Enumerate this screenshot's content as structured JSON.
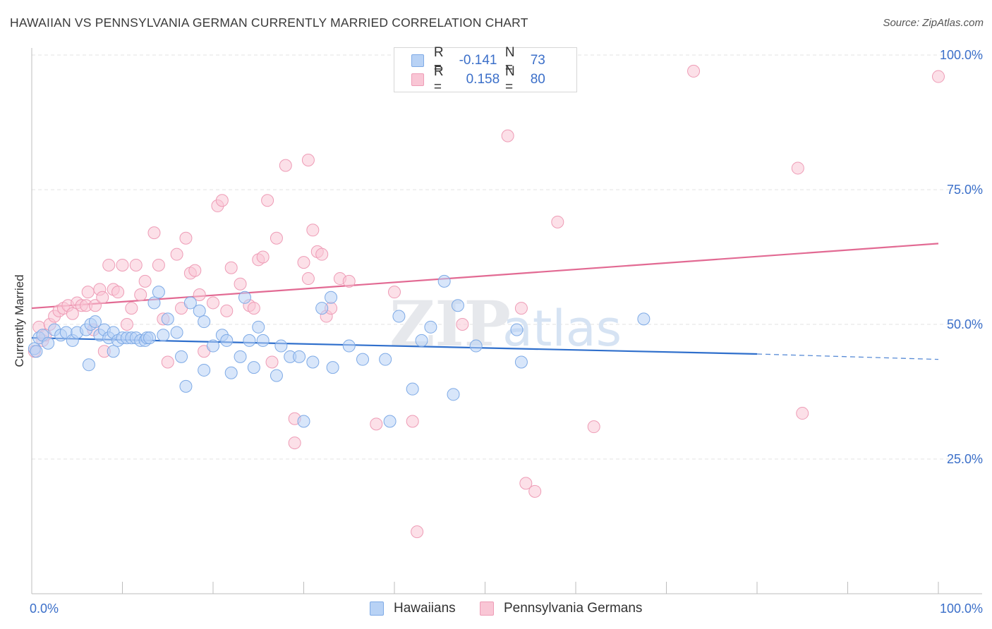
{
  "title": "HAWAIIAN VS PENNSYLVANIA GERMAN CURRENTLY MARRIED CORRELATION CHART",
  "source": "Source: ZipAtlas.com",
  "watermark": {
    "zip": "ZIP",
    "atlas": "atlas"
  },
  "colors": {
    "blue_fill": "#b8d2f5",
    "blue_stroke": "#7eaae6",
    "blue_line": "#2f6fcc",
    "pink_fill": "#f9c6d5",
    "pink_stroke": "#ee9cb6",
    "pink_line": "#e26a93",
    "tick_text": "#3b6fc9",
    "grid": "#e3e3e3"
  },
  "legend": {
    "rows": [
      {
        "r_label": "R =",
        "r_value": "-0.141",
        "n_label": "N =",
        "n_value": "73"
      },
      {
        "r_label": "R =",
        "r_value": "0.158",
        "n_label": "N =",
        "n_value": "80"
      }
    ]
  },
  "chart_data": {
    "type": "scatter",
    "title": "HAWAIIAN VS PENNSYLVANIA GERMAN CURRENTLY MARRIED CORRELATION CHART",
    "xlabel": "",
    "ylabel": "Currently Married",
    "xlim": [
      0,
      100
    ],
    "ylim": [
      0,
      100
    ],
    "x_tick_labels": [
      "0.0%",
      "100.0%"
    ],
    "y_tick_labels": [
      "25.0%",
      "50.0%",
      "75.0%",
      "100.0%"
    ],
    "y_ticks": [
      25,
      50,
      75,
      100
    ],
    "legend_position": "top-center",
    "series": [
      {
        "name": "Hawaiians",
        "r": -0.141,
        "n": 73,
        "trend": {
          "x0": 0,
          "y0": 47.5,
          "x1": 80,
          "y1": 44.5,
          "dash_to": 100,
          "dash_y": 43.5
        },
        "points": [
          [
            0.3,
            45.5
          ],
          [
            0.8,
            47.5
          ],
          [
            1.2,
            48
          ],
          [
            1.8,
            46.5
          ],
          [
            2.5,
            49
          ],
          [
            3.2,
            48
          ],
          [
            3.8,
            48.5
          ],
          [
            4.5,
            47
          ],
          [
            5,
            48.5
          ],
          [
            6,
            49
          ],
          [
            6.3,
            42.5
          ],
          [
            6.5,
            50
          ],
          [
            7,
            50.5
          ],
          [
            7.5,
            48
          ],
          [
            8,
            49
          ],
          [
            8.5,
            47.5
          ],
          [
            9,
            48.5
          ],
          [
            9,
            45
          ],
          [
            9.5,
            47
          ],
          [
            10,
            47.5
          ],
          [
            10.5,
            47.5
          ],
          [
            11,
            47.5
          ],
          [
            11.5,
            47.5
          ],
          [
            12,
            47
          ],
          [
            12.5,
            47
          ],
          [
            12.7,
            47.5
          ],
          [
            13,
            47.5
          ],
          [
            13.5,
            54
          ],
          [
            14,
            56
          ],
          [
            14.5,
            48
          ],
          [
            15,
            51
          ],
          [
            16,
            48.5
          ],
          [
            16.5,
            44
          ],
          [
            17,
            38.5
          ],
          [
            17.5,
            54
          ],
          [
            18.5,
            52.5
          ],
          [
            19,
            41.5
          ],
          [
            19,
            50.5
          ],
          [
            20,
            46
          ],
          [
            21,
            48
          ],
          [
            21.5,
            47
          ],
          [
            22,
            41
          ],
          [
            23,
            44
          ],
          [
            23.5,
            55
          ],
          [
            24,
            47
          ],
          [
            24.5,
            42
          ],
          [
            25,
            49.5
          ],
          [
            25.5,
            47
          ],
          [
            27,
            40.5
          ],
          [
            27.5,
            46
          ],
          [
            28.5,
            44
          ],
          [
            29.5,
            44
          ],
          [
            30,
            32
          ],
          [
            31,
            43
          ],
          [
            32,
            53
          ],
          [
            33,
            55
          ],
          [
            33.2,
            42
          ],
          [
            35,
            46
          ],
          [
            36.5,
            43.5
          ],
          [
            39,
            43.5
          ],
          [
            39.5,
            32
          ],
          [
            40.5,
            51.5
          ],
          [
            42,
            38
          ],
          [
            43,
            47
          ],
          [
            44,
            49.5
          ],
          [
            45.5,
            58
          ],
          [
            46.5,
            37
          ],
          [
            47,
            53.5
          ],
          [
            49,
            46
          ],
          [
            53.5,
            49
          ],
          [
            54,
            43
          ],
          [
            67.5,
            51
          ],
          [
            0.5,
            45
          ]
        ]
      },
      {
        "name": "Pennsylvania Germans",
        "r": 0.158,
        "n": 80,
        "trend": {
          "x0": 0,
          "y0": 53,
          "x1": 100,
          "y1": 65
        },
        "points": [
          [
            0.3,
            45
          ],
          [
            0.8,
            49.5
          ],
          [
            1.2,
            47
          ],
          [
            1.5,
            48
          ],
          [
            2,
            50
          ],
          [
            2.5,
            51.5
          ],
          [
            3,
            52.5
          ],
          [
            3.5,
            53
          ],
          [
            4,
            53.5
          ],
          [
            4.5,
            52
          ],
          [
            5,
            54
          ],
          [
            5.5,
            53.5
          ],
          [
            6,
            53.5
          ],
          [
            6.2,
            56
          ],
          [
            6.8,
            49
          ],
          [
            7,
            53.5
          ],
          [
            7.5,
            56.5
          ],
          [
            7.8,
            55
          ],
          [
            8,
            45
          ],
          [
            8.5,
            61
          ],
          [
            9,
            56.5
          ],
          [
            9.5,
            56
          ],
          [
            10,
            61
          ],
          [
            10.5,
            50
          ],
          [
            11,
            53
          ],
          [
            11.5,
            61
          ],
          [
            12,
            55.5
          ],
          [
            12.5,
            58
          ],
          [
            13.5,
            67
          ],
          [
            14,
            61
          ],
          [
            14.5,
            51
          ],
          [
            15,
            43
          ],
          [
            16,
            63
          ],
          [
            16.5,
            53
          ],
          [
            17,
            66
          ],
          [
            17.5,
            59.5
          ],
          [
            18,
            60
          ],
          [
            18.5,
            55.5
          ],
          [
            19,
            45
          ],
          [
            20,
            54
          ],
          [
            20.5,
            72
          ],
          [
            21,
            73
          ],
          [
            21.5,
            52.5
          ],
          [
            22,
            60.5
          ],
          [
            23,
            57.5
          ],
          [
            24,
            53.5
          ],
          [
            24.5,
            53
          ],
          [
            25,
            62
          ],
          [
            25.5,
            62.5
          ],
          [
            26,
            73
          ],
          [
            26.5,
            43
          ],
          [
            27,
            66
          ],
          [
            28,
            79.5
          ],
          [
            29,
            32.5
          ],
          [
            29,
            28
          ],
          [
            30,
            61.5
          ],
          [
            30.5,
            80.5
          ],
          [
            30.5,
            58.5
          ],
          [
            31,
            67.5
          ],
          [
            31.5,
            63.5
          ],
          [
            32,
            63
          ],
          [
            32.5,
            51.5
          ],
          [
            33,
            53
          ],
          [
            34,
            58.5
          ],
          [
            35,
            58
          ],
          [
            38,
            31.5
          ],
          [
            40,
            56
          ],
          [
            42,
            32
          ],
          [
            47.5,
            50
          ],
          [
            52.5,
            85
          ],
          [
            54,
            53
          ],
          [
            54.5,
            20.5
          ],
          [
            55.5,
            19
          ],
          [
            58,
            69
          ],
          [
            62,
            31
          ],
          [
            73,
            97
          ],
          [
            84.5,
            79
          ],
          [
            85,
            33.5
          ],
          [
            100,
            96
          ],
          [
            42.5,
            11.5
          ]
        ]
      }
    ]
  },
  "bottom_legend": [
    "Hawaiians",
    "Pennsylvania Germans"
  ]
}
